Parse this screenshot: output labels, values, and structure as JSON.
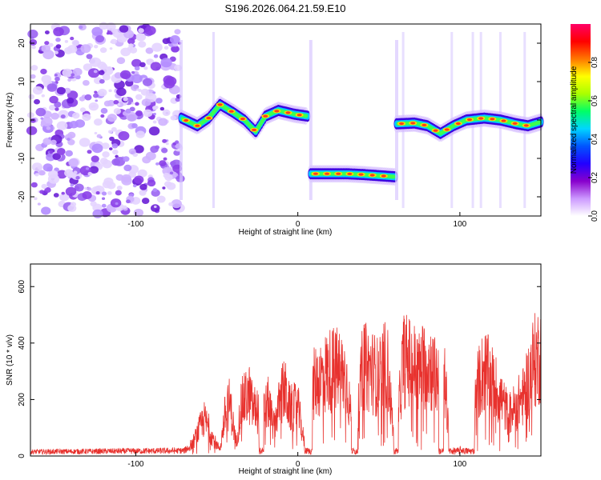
{
  "title": "S196.2026.064.21.59.E10",
  "chart_data": [
    {
      "type": "heatmap",
      "xlabel": "Height of straight line (km)",
      "ylabel": "Frequency (Hz)",
      "xlim": [
        -165,
        150
      ],
      "ylim": [
        -25,
        25
      ],
      "xticks": [
        "-100",
        "0",
        "100"
      ],
      "yticks": [
        "-20",
        "-10",
        "0",
        "10",
        "20"
      ],
      "colorbar": {
        "label": "Normalized spectral amplitude",
        "range": [
          0.0,
          1.0
        ],
        "ticks": [
          "0.0",
          "0.2",
          "0.4",
          "0.6",
          "0.8"
        ],
        "colors": [
          "#ffffff",
          "#cc99ff",
          "#8800cc",
          "#2200ff",
          "#0055ff",
          "#00d5ff",
          "#00ff66",
          "#aaff00",
          "#ffff00",
          "#ff7700",
          "#ff0000",
          "#ff0066"
        ]
      },
      "noise_region_x": [
        -165,
        -72
      ],
      "traces": [
        {
          "name": "segment-1",
          "points": [
            [
              -72,
              0.5
            ],
            [
              -62,
              -1.5
            ],
            [
              -55,
              0.5
            ],
            [
              -48,
              4
            ],
            [
              -40,
              2
            ],
            [
              -33,
              0
            ],
            [
              -26,
              -3
            ],
            [
              -20,
              1
            ],
            [
              -12,
              2.5
            ],
            [
              -2,
              1.5
            ],
            [
              6,
              1
            ]
          ]
        },
        {
          "name": "segment-2",
          "points": [
            [
              8,
              -14
            ],
            [
              20,
              -14
            ],
            [
              30,
              -14
            ],
            [
              40,
              -14.2
            ],
            [
              50,
              -14.5
            ],
            [
              60,
              -14.8
            ]
          ]
        },
        {
          "name": "segment-3",
          "points": [
            [
              61,
              -1
            ],
            [
              72,
              -0.8
            ],
            [
              80,
              -1.5
            ],
            [
              88,
              -3.5
            ],
            [
              96,
              -1.5
            ],
            [
              104,
              0
            ],
            [
              115,
              0.5
            ],
            [
              125,
              0
            ],
            [
              135,
              -1
            ],
            [
              142,
              -1.5
            ],
            [
              150,
              -0.5
            ]
          ]
        }
      ]
    },
    {
      "type": "line",
      "xlabel": "Height of straight line (km)",
      "ylabel": "SNR (10 * v/v)",
      "xlim": [
        -165,
        150
      ],
      "ylim": [
        0,
        680
      ],
      "xticks": [
        "-100",
        "0",
        "100"
      ],
      "yticks": [
        "0",
        "200",
        "400",
        "600"
      ],
      "series": [
        {
          "name": "SNR",
          "color": "#e8322e",
          "envelope": {
            "x": [
              -165,
              -70,
              -65,
              -62,
              -58,
              -55,
              -52,
              -48,
              -45,
              -42,
              -38,
              -35,
              -30,
              -28,
              -22,
              -18,
              -15,
              -10,
              -8,
              -5,
              0,
              5,
              10,
              15,
              20,
              25,
              30,
              35,
              40,
              45,
              50,
              55,
              60,
              65,
              70,
              75,
              80,
              85,
              90,
              95,
              98,
              100,
              103,
              105,
              108,
              110,
              115,
              120,
              125,
              130,
              135,
              140,
              145,
              150
            ],
            "y": [
              20,
              25,
              60,
              110,
              180,
              140,
              80,
              30,
              200,
              260,
              60,
              250,
              300,
              240,
              200,
              260,
              140,
              300,
              320,
              230,
              240,
              20,
              350,
              390,
              420,
              420,
              380,
              40,
              440,
              420,
              380,
              460,
              30,
              470,
              450,
              410,
              470,
              380,
              400,
              30,
              60,
              30,
              25,
              60,
              30,
              330,
              420,
              360,
              290,
              200,
              250,
              300,
              450,
              500
            ]
          },
          "dropouts": [
            [
              -24,
              -21
            ],
            [
              4,
              9
            ],
            [
              33,
              37
            ],
            [
              59,
              62
            ],
            [
              87,
              90
            ],
            [
              93,
              100
            ],
            [
              102,
              109
            ]
          ]
        }
      ]
    }
  ]
}
